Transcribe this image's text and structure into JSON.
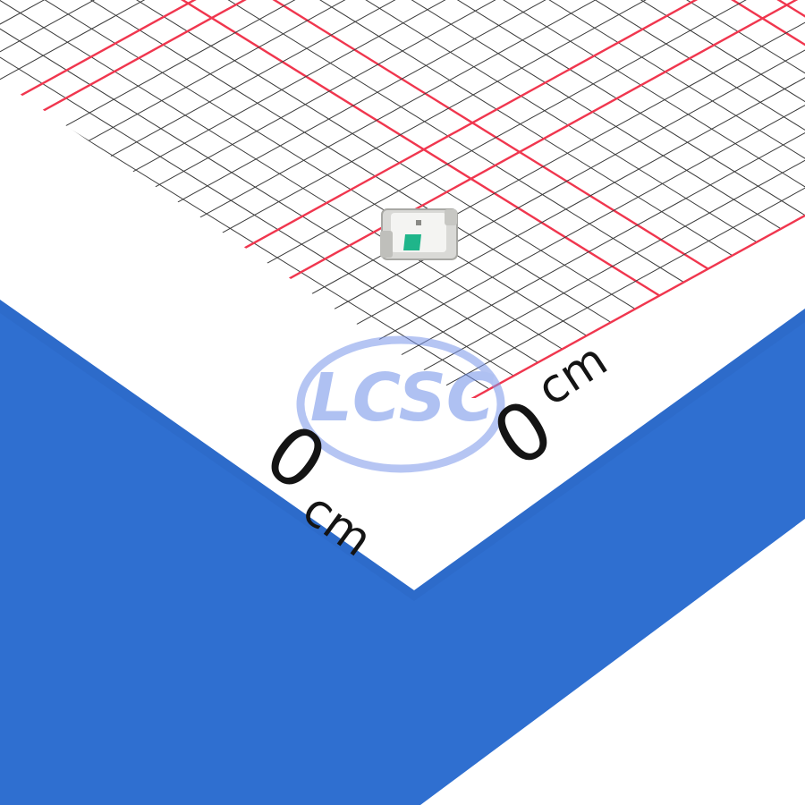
{
  "photo": {
    "left_scale": {
      "number": "0",
      "unit": "cm"
    },
    "right_scale": {
      "number": "0",
      "unit": "cm"
    },
    "watermark": "LCSC",
    "subject": "smd-led-component"
  },
  "colors": {
    "background": "#ffffff",
    "blue_mat": "#2f6fd0",
    "grid_line": "#3a3a3a",
    "major_grid": "#f0364e",
    "watermark": "#6f8fe8"
  }
}
